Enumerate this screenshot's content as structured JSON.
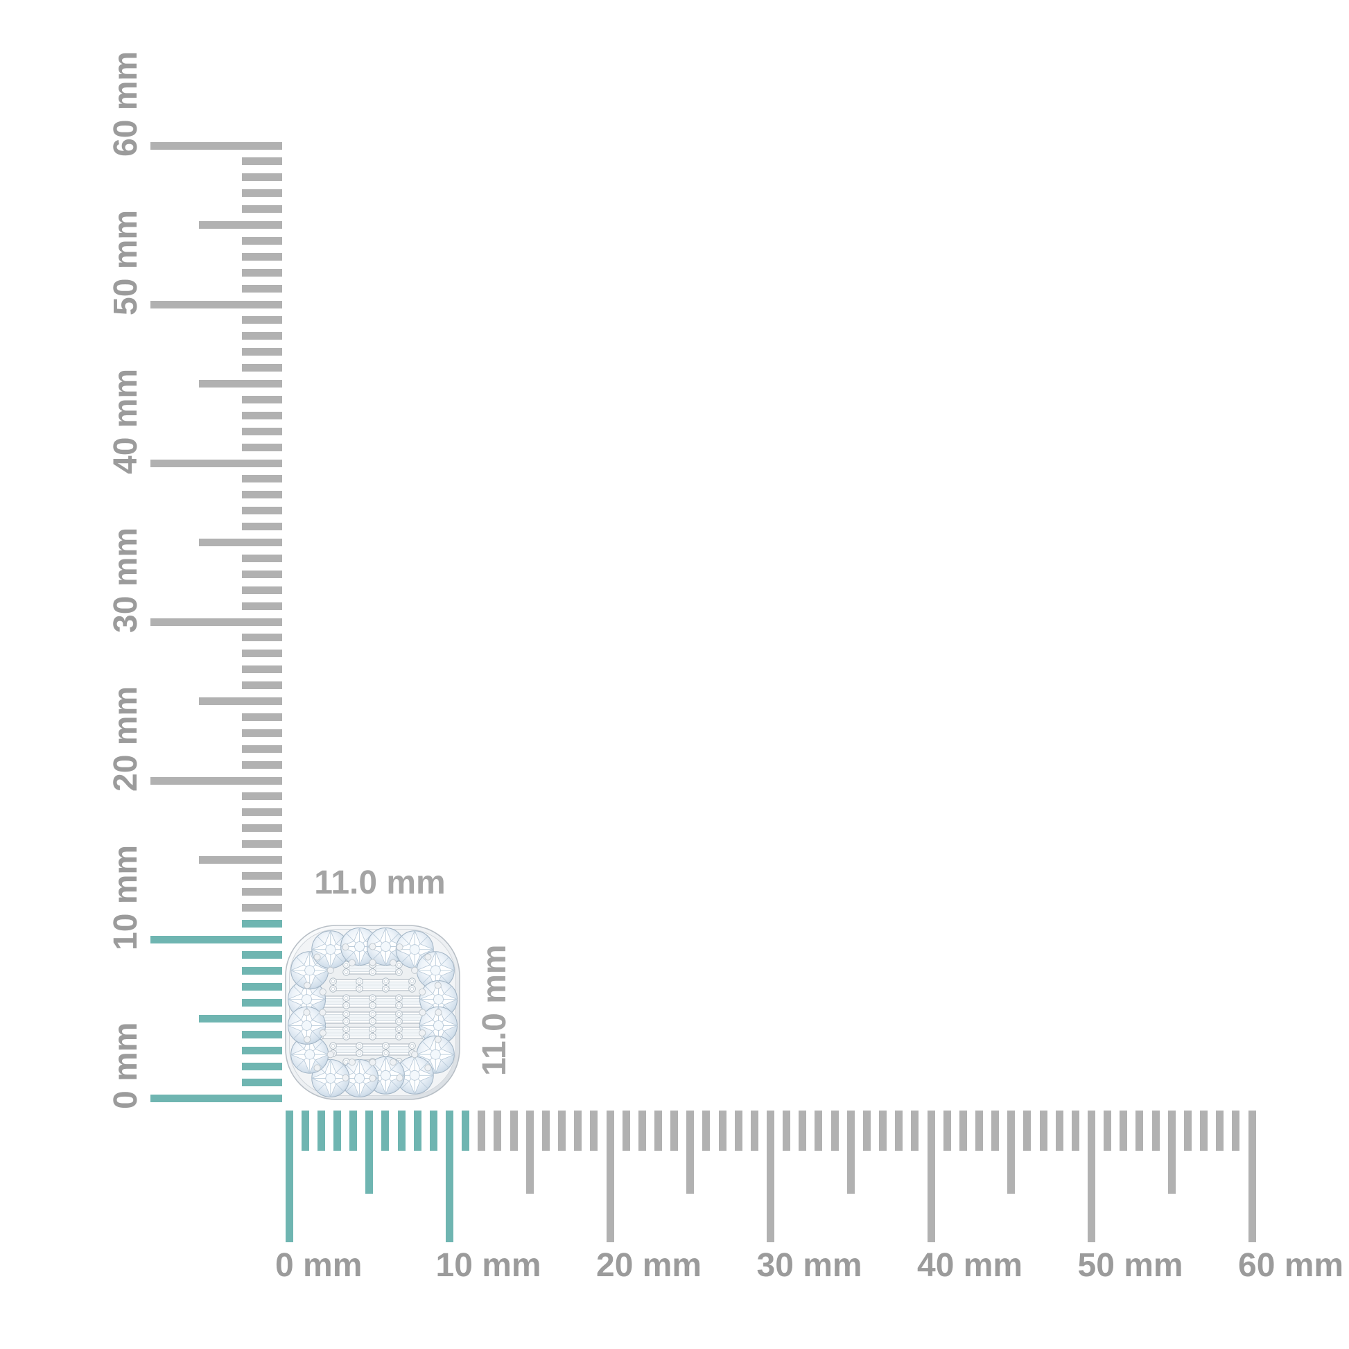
{
  "item": {
    "width_label": "11.0 mm",
    "height_label": "11.0 mm"
  },
  "rulers": {
    "unit": "mm",
    "horizontal": {
      "max_mm": 60,
      "minor_step_mm": 1,
      "half_step_mm": 5,
      "major_step_mm": 10,
      "highlight_to_mm": 11,
      "tick_labels": [
        "0 mm",
        "10 mm",
        "20 mm",
        "30 mm",
        "40 mm",
        "50 mm",
        "60 mm"
      ]
    },
    "vertical": {
      "max_mm": 60,
      "minor_step_mm": 1,
      "half_step_mm": 5,
      "major_step_mm": 10,
      "highlight_to_mm": 11,
      "tick_labels": [
        "0 mm",
        "10 mm",
        "20 mm",
        "30 mm",
        "40 mm",
        "50 mm",
        "60 mm"
      ]
    }
  },
  "colors": {
    "background": "#FFFFFF",
    "highlight_teal": "#6FB5B1",
    "tick_gray": "#B1B1B1",
    "ruler_label_gray": "#9B9B9B",
    "dimension_label_gray": "#A4A4A4"
  }
}
